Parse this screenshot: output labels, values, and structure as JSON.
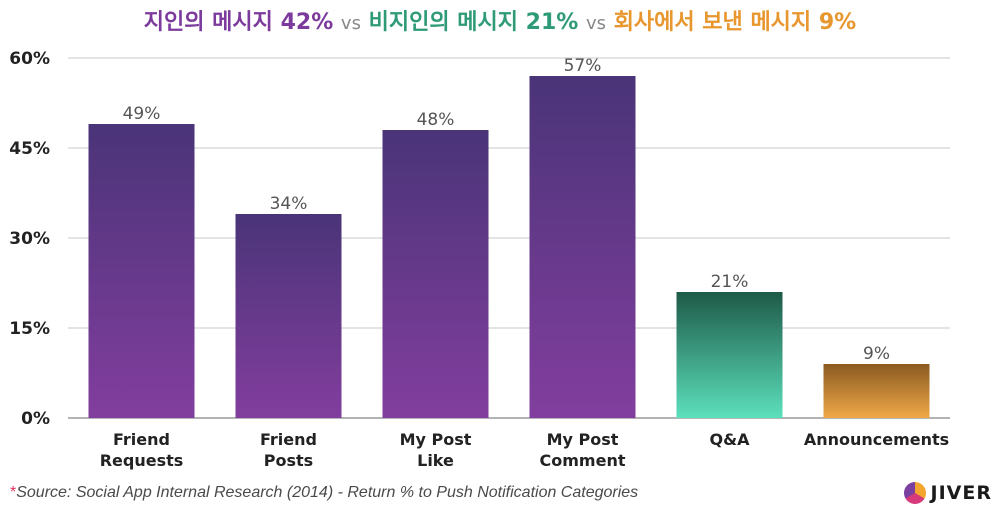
{
  "title": {
    "seg1_label": "지인의 메시지",
    "seg1_value": "42%",
    "vs1": "vs",
    "seg2_label": "비지인의 메시지",
    "seg2_value": "21%",
    "vs2": "vs",
    "seg3_label": "회사에서 보낸 메시지",
    "seg3_value": "9%",
    "colors": {
      "purple": "#7b3a9c",
      "green": "#2e9a78",
      "orange": "#e8962e",
      "vs": "#888888"
    }
  },
  "chart_data": {
    "type": "bar",
    "categories": [
      [
        "Friend",
        "Requests"
      ],
      [
        "Friend",
        "Posts"
      ],
      [
        "My Post",
        "Like"
      ],
      [
        "My Post",
        "Comment"
      ],
      [
        "Q&A"
      ],
      [
        "Announcements"
      ]
    ],
    "values": [
      49,
      34,
      48,
      57,
      21,
      9
    ],
    "value_labels": [
      "49%",
      "34%",
      "48%",
      "57%",
      "21%",
      "9%"
    ],
    "bar_colors": [
      "purple",
      "purple",
      "purple",
      "purple",
      "green",
      "orange"
    ],
    "ylim": [
      0,
      60
    ],
    "yticks": [
      0,
      15,
      30,
      45,
      60
    ],
    "ytick_labels": [
      "0%",
      "15%",
      "30%",
      "45%",
      "60%"
    ],
    "grid": true,
    "gradients": {
      "purple": [
        "#4a3478",
        "#823e9e"
      ],
      "green": [
        "#1e5a48",
        "#5ce0bc"
      ],
      "orange": [
        "#8a5a20",
        "#f0a848"
      ]
    }
  },
  "footer": {
    "star": "*",
    "source": "Source: Social App Internal Research (2014) - Return % to Push Notification Categories",
    "logo_text": "JIVER"
  }
}
